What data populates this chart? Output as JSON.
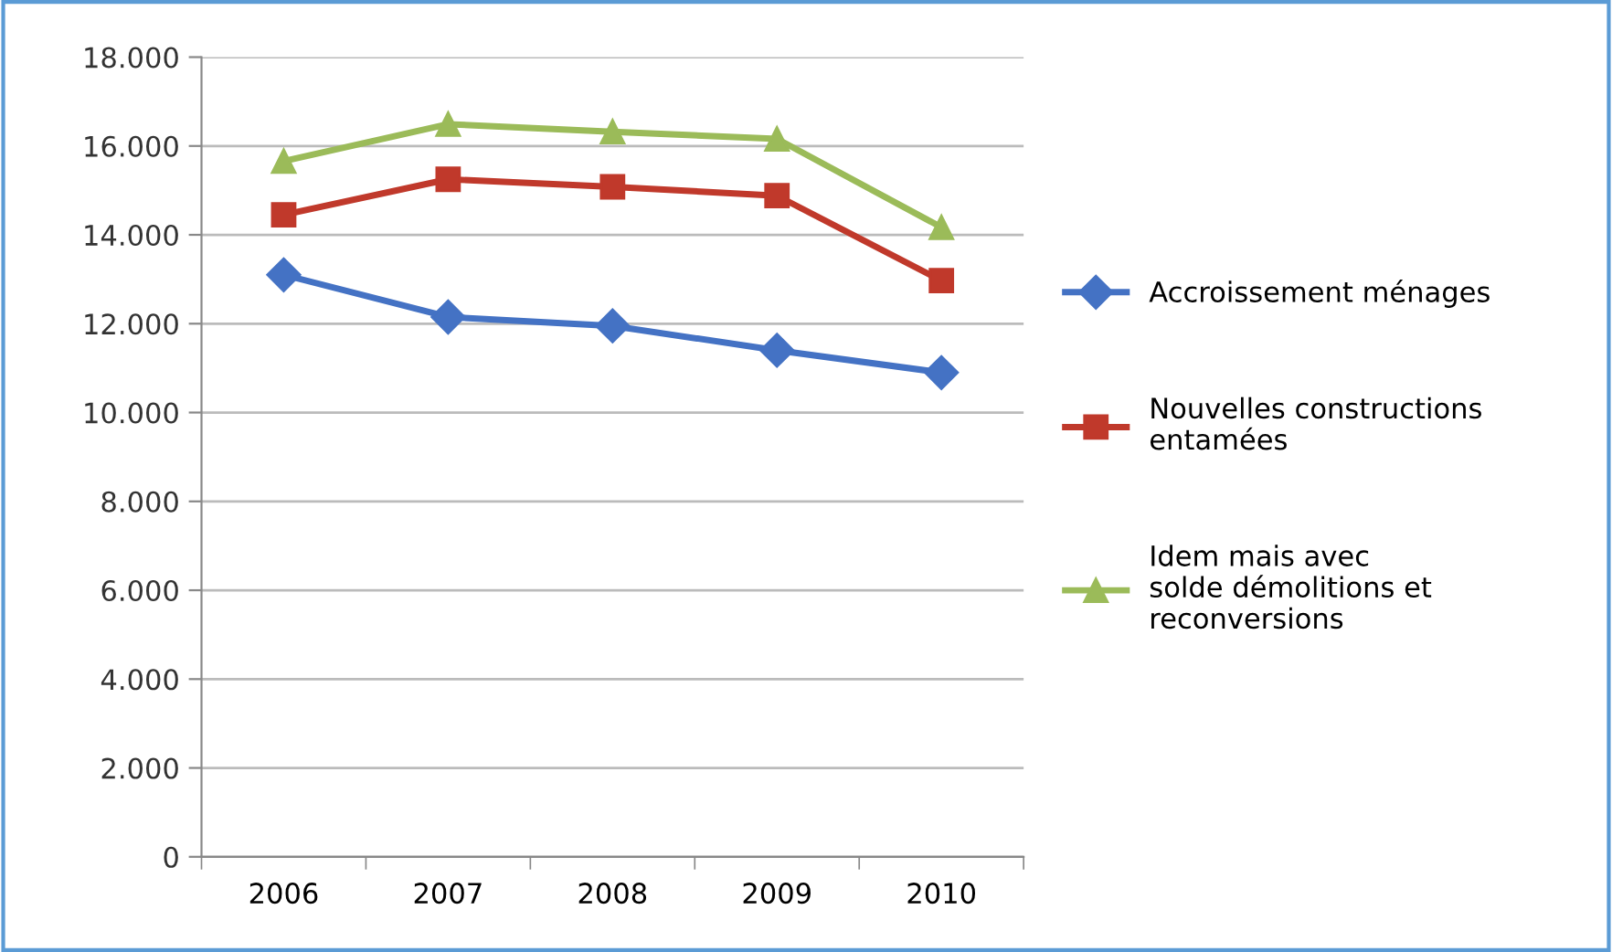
{
  "chart_data": {
    "type": "line",
    "categories": [
      "2006",
      "2007",
      "2008",
      "2009",
      "2010"
    ],
    "series": [
      {
        "name": "Accroissement ménages",
        "color": "#4472c4",
        "values": [
          13100,
          12150,
          11950,
          11400,
          10900
        ],
        "marker": "diamond"
      },
      {
        "name": "Nouvelles constructions\nentamées",
        "color": "#c0392b",
        "values": [
          14450,
          15250,
          15080,
          14880,
          12970
        ],
        "marker": "square"
      },
      {
        "name": "Idem mais avec\nsolde démolitions et\nreconversions",
        "color": "#9bbb59",
        "values": [
          15660,
          16490,
          16320,
          16160,
          14170
        ],
        "marker": "triangle"
      }
    ],
    "ylim": [
      0,
      18000
    ],
    "yticks": [
      {
        "value": 0,
        "label": "0"
      },
      {
        "value": 2000,
        "label": "2.000"
      },
      {
        "value": 4000,
        "label": "4.000"
      },
      {
        "value": 6000,
        "label": "6.000"
      },
      {
        "value": 8000,
        "label": "8.000"
      },
      {
        "value": 10000,
        "label": "10.000"
      },
      {
        "value": 12000,
        "label": "12.000"
      },
      {
        "value": 14000,
        "label": "14.000"
      },
      {
        "value": 16000,
        "label": "16.000"
      },
      {
        "value": 18000,
        "label": "18.000"
      }
    ],
    "grid": "y",
    "legend": "right",
    "line_style": "solid"
  }
}
